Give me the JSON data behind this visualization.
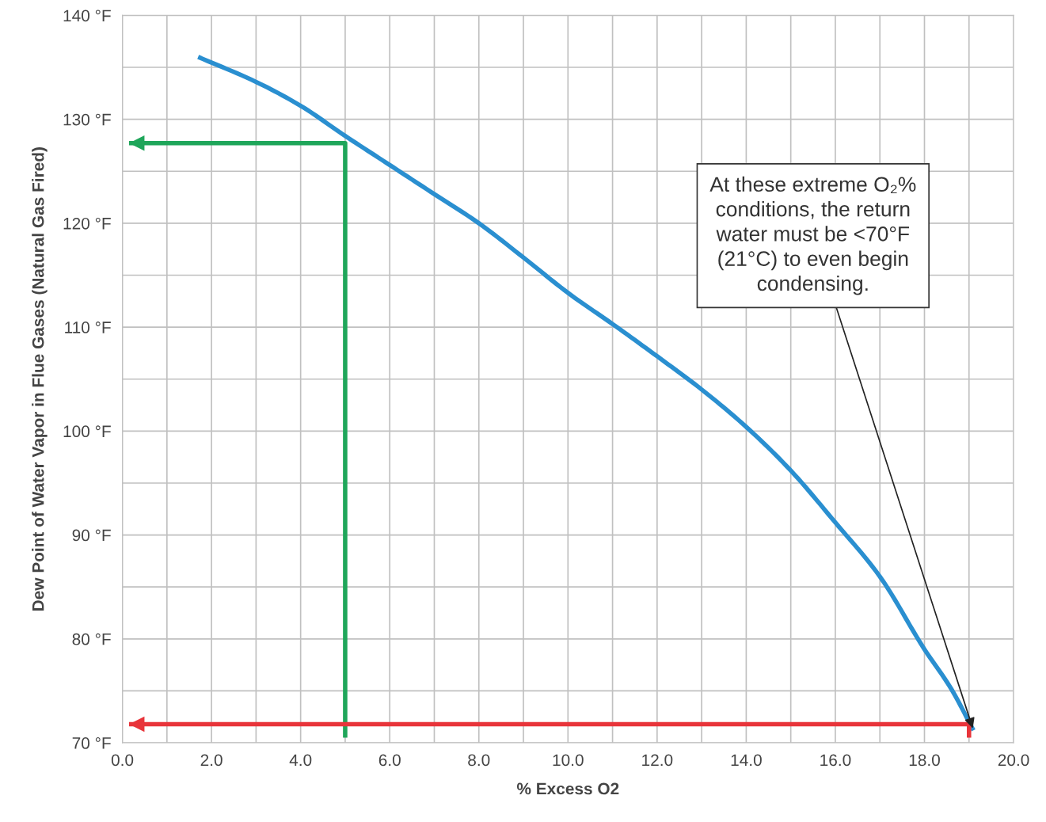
{
  "chart_data": {
    "type": "line",
    "xlabel": "% Excess O2",
    "ylabel": "Dew Point of Water Vapor in Flue Gases (Natural Gas Fired)",
    "xlim": [
      0,
      20
    ],
    "ylim": [
      70,
      140
    ],
    "xticks": [
      {
        "value": 0,
        "label": "0.0"
      },
      {
        "value": 1,
        "label": null
      },
      {
        "value": 2,
        "label": "2.0"
      },
      {
        "value": 3,
        "label": null
      },
      {
        "value": 4,
        "label": "4.0"
      },
      {
        "value": 5,
        "label": null
      },
      {
        "value": 6,
        "label": "6.0"
      },
      {
        "value": 7,
        "label": null
      },
      {
        "value": 8,
        "label": "8.0"
      },
      {
        "value": 9,
        "label": null
      },
      {
        "value": 10,
        "label": "10.0"
      },
      {
        "value": 11,
        "label": null
      },
      {
        "value": 12,
        "label": "12.0"
      },
      {
        "value": 13,
        "label": null
      },
      {
        "value": 14,
        "label": "14.0"
      },
      {
        "value": 15,
        "label": null
      },
      {
        "value": 16,
        "label": "16.0"
      },
      {
        "value": 17,
        "label": null
      },
      {
        "value": 18,
        "label": "18.0"
      },
      {
        "value": 19,
        "label": null
      },
      {
        "value": 20,
        "label": "20.0"
      }
    ],
    "yticks": [
      {
        "value": 70,
        "label": "70 °F"
      },
      {
        "value": 75,
        "label": null
      },
      {
        "value": 80,
        "label": "80 °F"
      },
      {
        "value": 85,
        "label": null
      },
      {
        "value": 90,
        "label": "90 °F"
      },
      {
        "value": 95,
        "label": null
      },
      {
        "value": 100,
        "label": "100 °F"
      },
      {
        "value": 105,
        "label": null
      },
      {
        "value": 110,
        "label": "110 °F"
      },
      {
        "value": 115,
        "label": null
      },
      {
        "value": 120,
        "label": "120 °F"
      },
      {
        "value": 125,
        "label": null
      },
      {
        "value": 130,
        "label": "130 °F"
      },
      {
        "value": 135,
        "label": null
      },
      {
        "value": 140,
        "label": "140 °F"
      }
    ],
    "grid": true,
    "series": [
      {
        "color": "#2a8fd0",
        "x": [
          1.7,
          3,
          4,
          5,
          6,
          7,
          8,
          9,
          10,
          11,
          12,
          13,
          14,
          15,
          16,
          17,
          18,
          18.6,
          19.1
        ],
        "values": [
          136,
          133.6,
          131.3,
          128.4,
          125.6,
          122.8,
          120,
          116.7,
          113.3,
          110.3,
          107.2,
          104,
          100.4,
          96.2,
          91.2,
          86,
          79,
          75.2,
          71.2
        ]
      },
      {
        "color": "#1fa65a",
        "x": [
          5,
          5,
          0.15
        ],
        "values": [
          70.5,
          127.7,
          127.7
        ]
      },
      {
        "color": "#e8343a",
        "x": [
          19,
          19,
          0.15
        ],
        "values": [
          70.5,
          71.8,
          71.8
        ]
      }
    ],
    "annotations": [
      {
        "text": "At these extreme O₂%\nconditions, the return\nwater must be <70°F\n(21°C) to even begin\ncondensing.",
        "x": 19.1,
        "y": 71.2
      }
    ]
  }
}
